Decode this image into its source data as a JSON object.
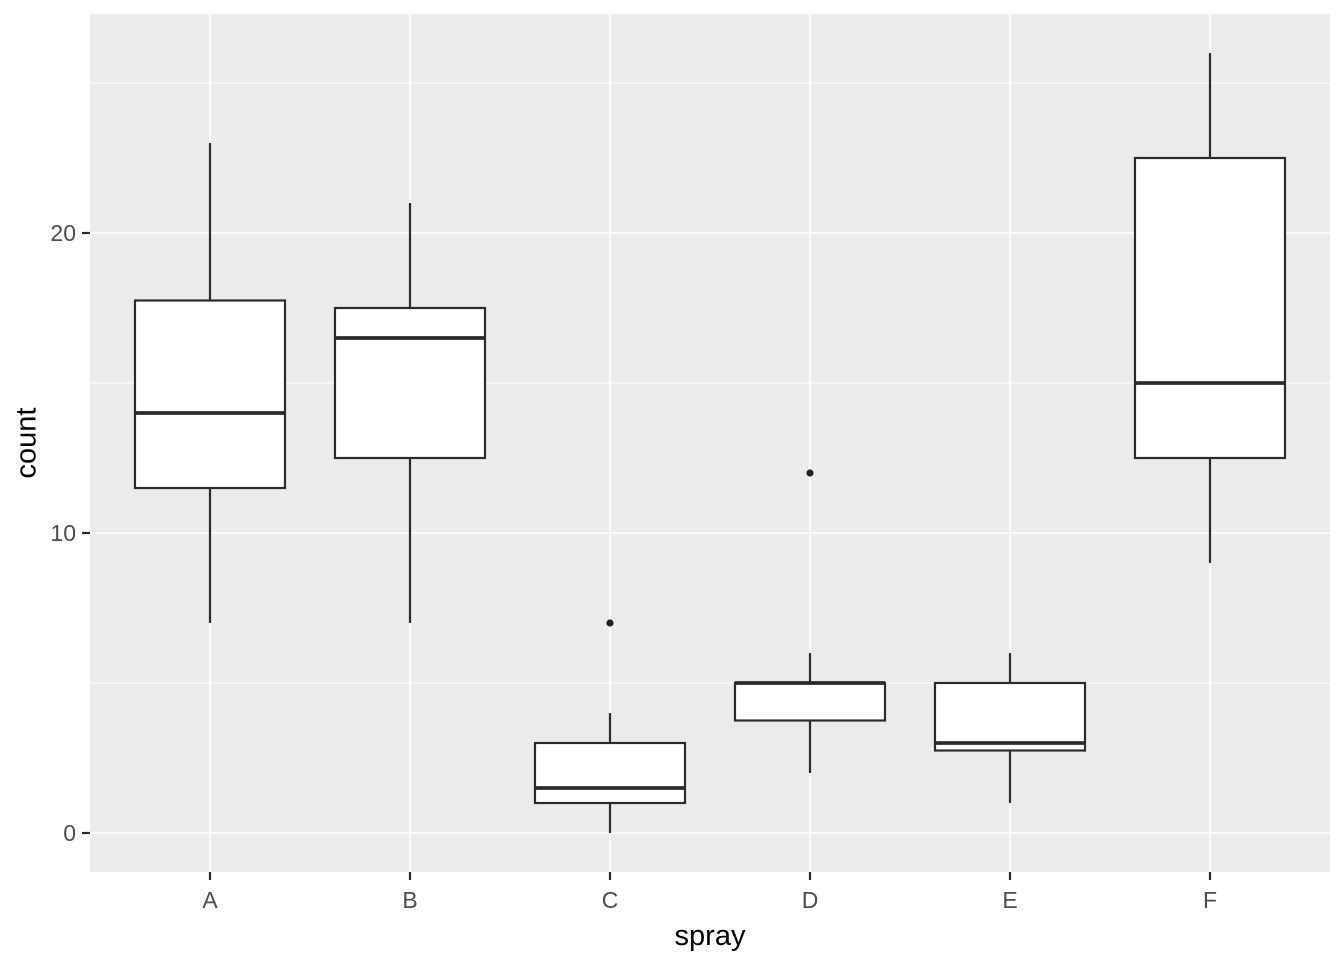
{
  "chart_data": {
    "type": "boxplot",
    "title": "",
    "xlabel": "spray",
    "ylabel": "count",
    "categories": [
      "A",
      "B",
      "C",
      "D",
      "E",
      "F"
    ],
    "series": [
      {
        "category": "A",
        "whisker_low": 7,
        "q1": 11.5,
        "median": 14,
        "q3": 17.75,
        "whisker_high": 23,
        "outliers": []
      },
      {
        "category": "B",
        "whisker_low": 7,
        "q1": 12.5,
        "median": 16.5,
        "q3": 17.5,
        "whisker_high": 21,
        "outliers": []
      },
      {
        "category": "C",
        "whisker_low": 0,
        "q1": 1,
        "median": 1.5,
        "q3": 3,
        "whisker_high": 4,
        "outliers": [
          7
        ]
      },
      {
        "category": "D",
        "whisker_low": 2,
        "q1": 3.75,
        "median": 5,
        "q3": 5,
        "whisker_high": 6,
        "outliers": [
          12
        ]
      },
      {
        "category": "E",
        "whisker_low": 1,
        "q1": 2.75,
        "median": 3,
        "q3": 5,
        "whisker_high": 6,
        "outliers": []
      },
      {
        "category": "F",
        "whisker_low": 9,
        "q1": 12.5,
        "median": 15,
        "q3": 22.5,
        "whisker_high": 26,
        "outliers": []
      }
    ],
    "y_axis": {
      "ticks": [
        {
          "value": 0,
          "label": "0"
        },
        {
          "value": 10,
          "label": "10"
        },
        {
          "value": 20,
          "label": "20"
        }
      ],
      "minor_ticks": [
        5,
        15,
        25
      ],
      "ylim": [
        -1.3,
        27.3
      ]
    },
    "legend": "none",
    "grid": "on",
    "style": {
      "panel_bg": "#EBEBEB",
      "grid_color": "#FFFFFF",
      "box_fill": "#FFFFFF",
      "line_color": "#2b2b2b",
      "outlier_color": "#222222",
      "tick_label_color": "#4D4D4D",
      "axis_title_color": "#000000"
    }
  }
}
